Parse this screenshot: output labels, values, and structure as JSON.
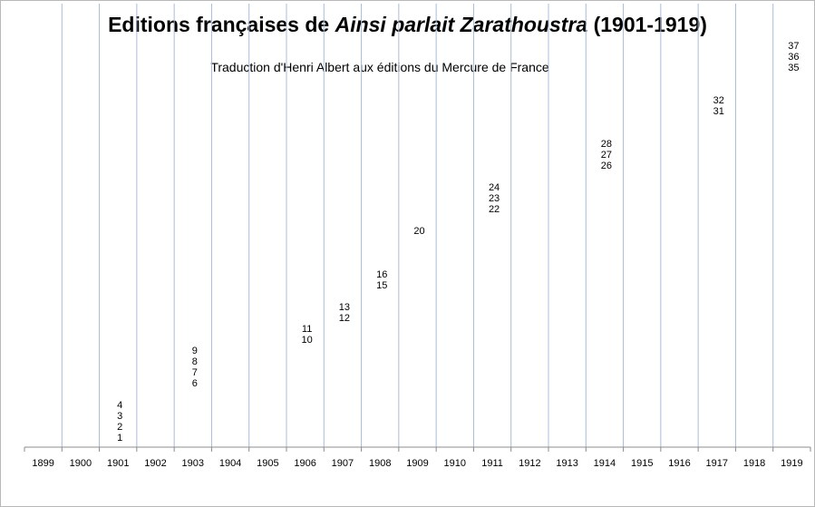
{
  "chart_data": {
    "type": "scatter",
    "title": {
      "prefix": "Editions françaises de ",
      "italic": "Ainsi parlait Zarathoustra",
      "suffix": " (1901-1919)"
    },
    "subtitle": "Traduction d'Henri Albert aux éditions du Mercure de France",
    "xlabel": "",
    "ylabel": "",
    "grid": true,
    "categories": [
      "1899",
      "1900",
      "1901",
      "1902",
      "1903",
      "1904",
      "1905",
      "1906",
      "1907",
      "1908",
      "1909",
      "1910",
      "1911",
      "1912",
      "1913",
      "1914",
      "1915",
      "1916",
      "1917",
      "1918",
      "1919"
    ],
    "ylim": [
      0,
      37
    ],
    "points": [
      {
        "x": "1901",
        "y": 1,
        "label": "1"
      },
      {
        "x": "1901",
        "y": 2,
        "label": "2"
      },
      {
        "x": "1901",
        "y": 3,
        "label": "3"
      },
      {
        "x": "1901",
        "y": 4,
        "label": "4"
      },
      {
        "x": "1903",
        "y": 6,
        "label": "6"
      },
      {
        "x": "1903",
        "y": 7,
        "label": "7"
      },
      {
        "x": "1903",
        "y": 8,
        "label": "8"
      },
      {
        "x": "1903",
        "y": 9,
        "label": "9"
      },
      {
        "x": "1906",
        "y": 10,
        "label": "10"
      },
      {
        "x": "1906",
        "y": 11,
        "label": "11"
      },
      {
        "x": "1907",
        "y": 12,
        "label": "12"
      },
      {
        "x": "1907",
        "y": 13,
        "label": "13"
      },
      {
        "x": "1908",
        "y": 15,
        "label": "15"
      },
      {
        "x": "1908",
        "y": 16,
        "label": "16"
      },
      {
        "x": "1909",
        "y": 20,
        "label": "20"
      },
      {
        "x": "1911",
        "y": 22,
        "label": "22"
      },
      {
        "x": "1911",
        "y": 23,
        "label": "23"
      },
      {
        "x": "1911",
        "y": 24,
        "label": "24"
      },
      {
        "x": "1914",
        "y": 26,
        "label": "26"
      },
      {
        "x": "1914",
        "y": 27,
        "label": "27"
      },
      {
        "x": "1914",
        "y": 28,
        "label": "28"
      },
      {
        "x": "1917",
        "y": 31,
        "label": "31"
      },
      {
        "x": "1917",
        "y": 32,
        "label": "32"
      },
      {
        "x": "1919",
        "y": 35,
        "label": "35"
      },
      {
        "x": "1919",
        "y": 36,
        "label": "36"
      },
      {
        "x": "1919",
        "y": 37,
        "label": "37"
      }
    ],
    "colors": {
      "gridline": "#a9bcd9",
      "axis": "#8c8c8c",
      "text": "#000000"
    }
  }
}
